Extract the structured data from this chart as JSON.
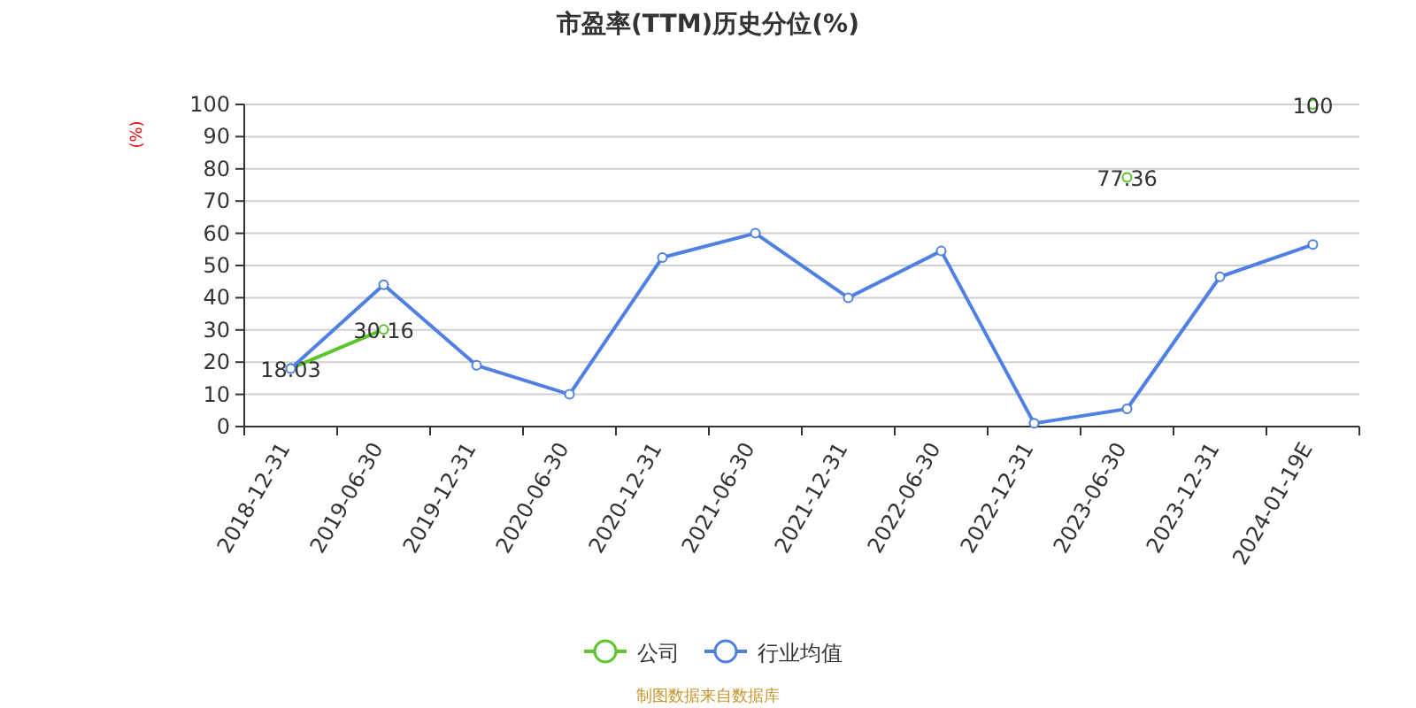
{
  "chart_data": {
    "type": "line",
    "title": "市盈率(TTM)历史分位(%)",
    "ylabel": "(%)",
    "categories": [
      "2018-12-31",
      "2019-06-30",
      "2019-12-31",
      "2020-06-30",
      "2020-12-31",
      "2021-06-30",
      "2021-12-31",
      "2022-06-30",
      "2022-12-31",
      "2023-06-30",
      "2023-12-31",
      "2024-01-19E"
    ],
    "series": [
      {
        "name": "公司",
        "color": "#5cc42e",
        "values": [
          18.03,
          30.16,
          null,
          null,
          null,
          null,
          null,
          null,
          null,
          77.36,
          null,
          100
        ],
        "value_labels": [
          "18.03",
          "30.16",
          null,
          null,
          null,
          null,
          null,
          null,
          null,
          "77.36",
          null,
          "100"
        ]
      },
      {
        "name": "行业均值",
        "color": "#4f80e2",
        "values": [
          18,
          44,
          19,
          10,
          52.5,
          60,
          40,
          54.5,
          1,
          5.5,
          46.5,
          56.5
        ]
      }
    ],
    "ylim": [
      0,
      100
    ],
    "yticks": [
      0,
      10,
      20,
      30,
      40,
      50,
      60,
      70,
      80,
      90,
      100
    ],
    "grid": "y",
    "legend": "bottom",
    "marker": "circle",
    "annotations": [
      "制图数据来自数据库"
    ]
  }
}
